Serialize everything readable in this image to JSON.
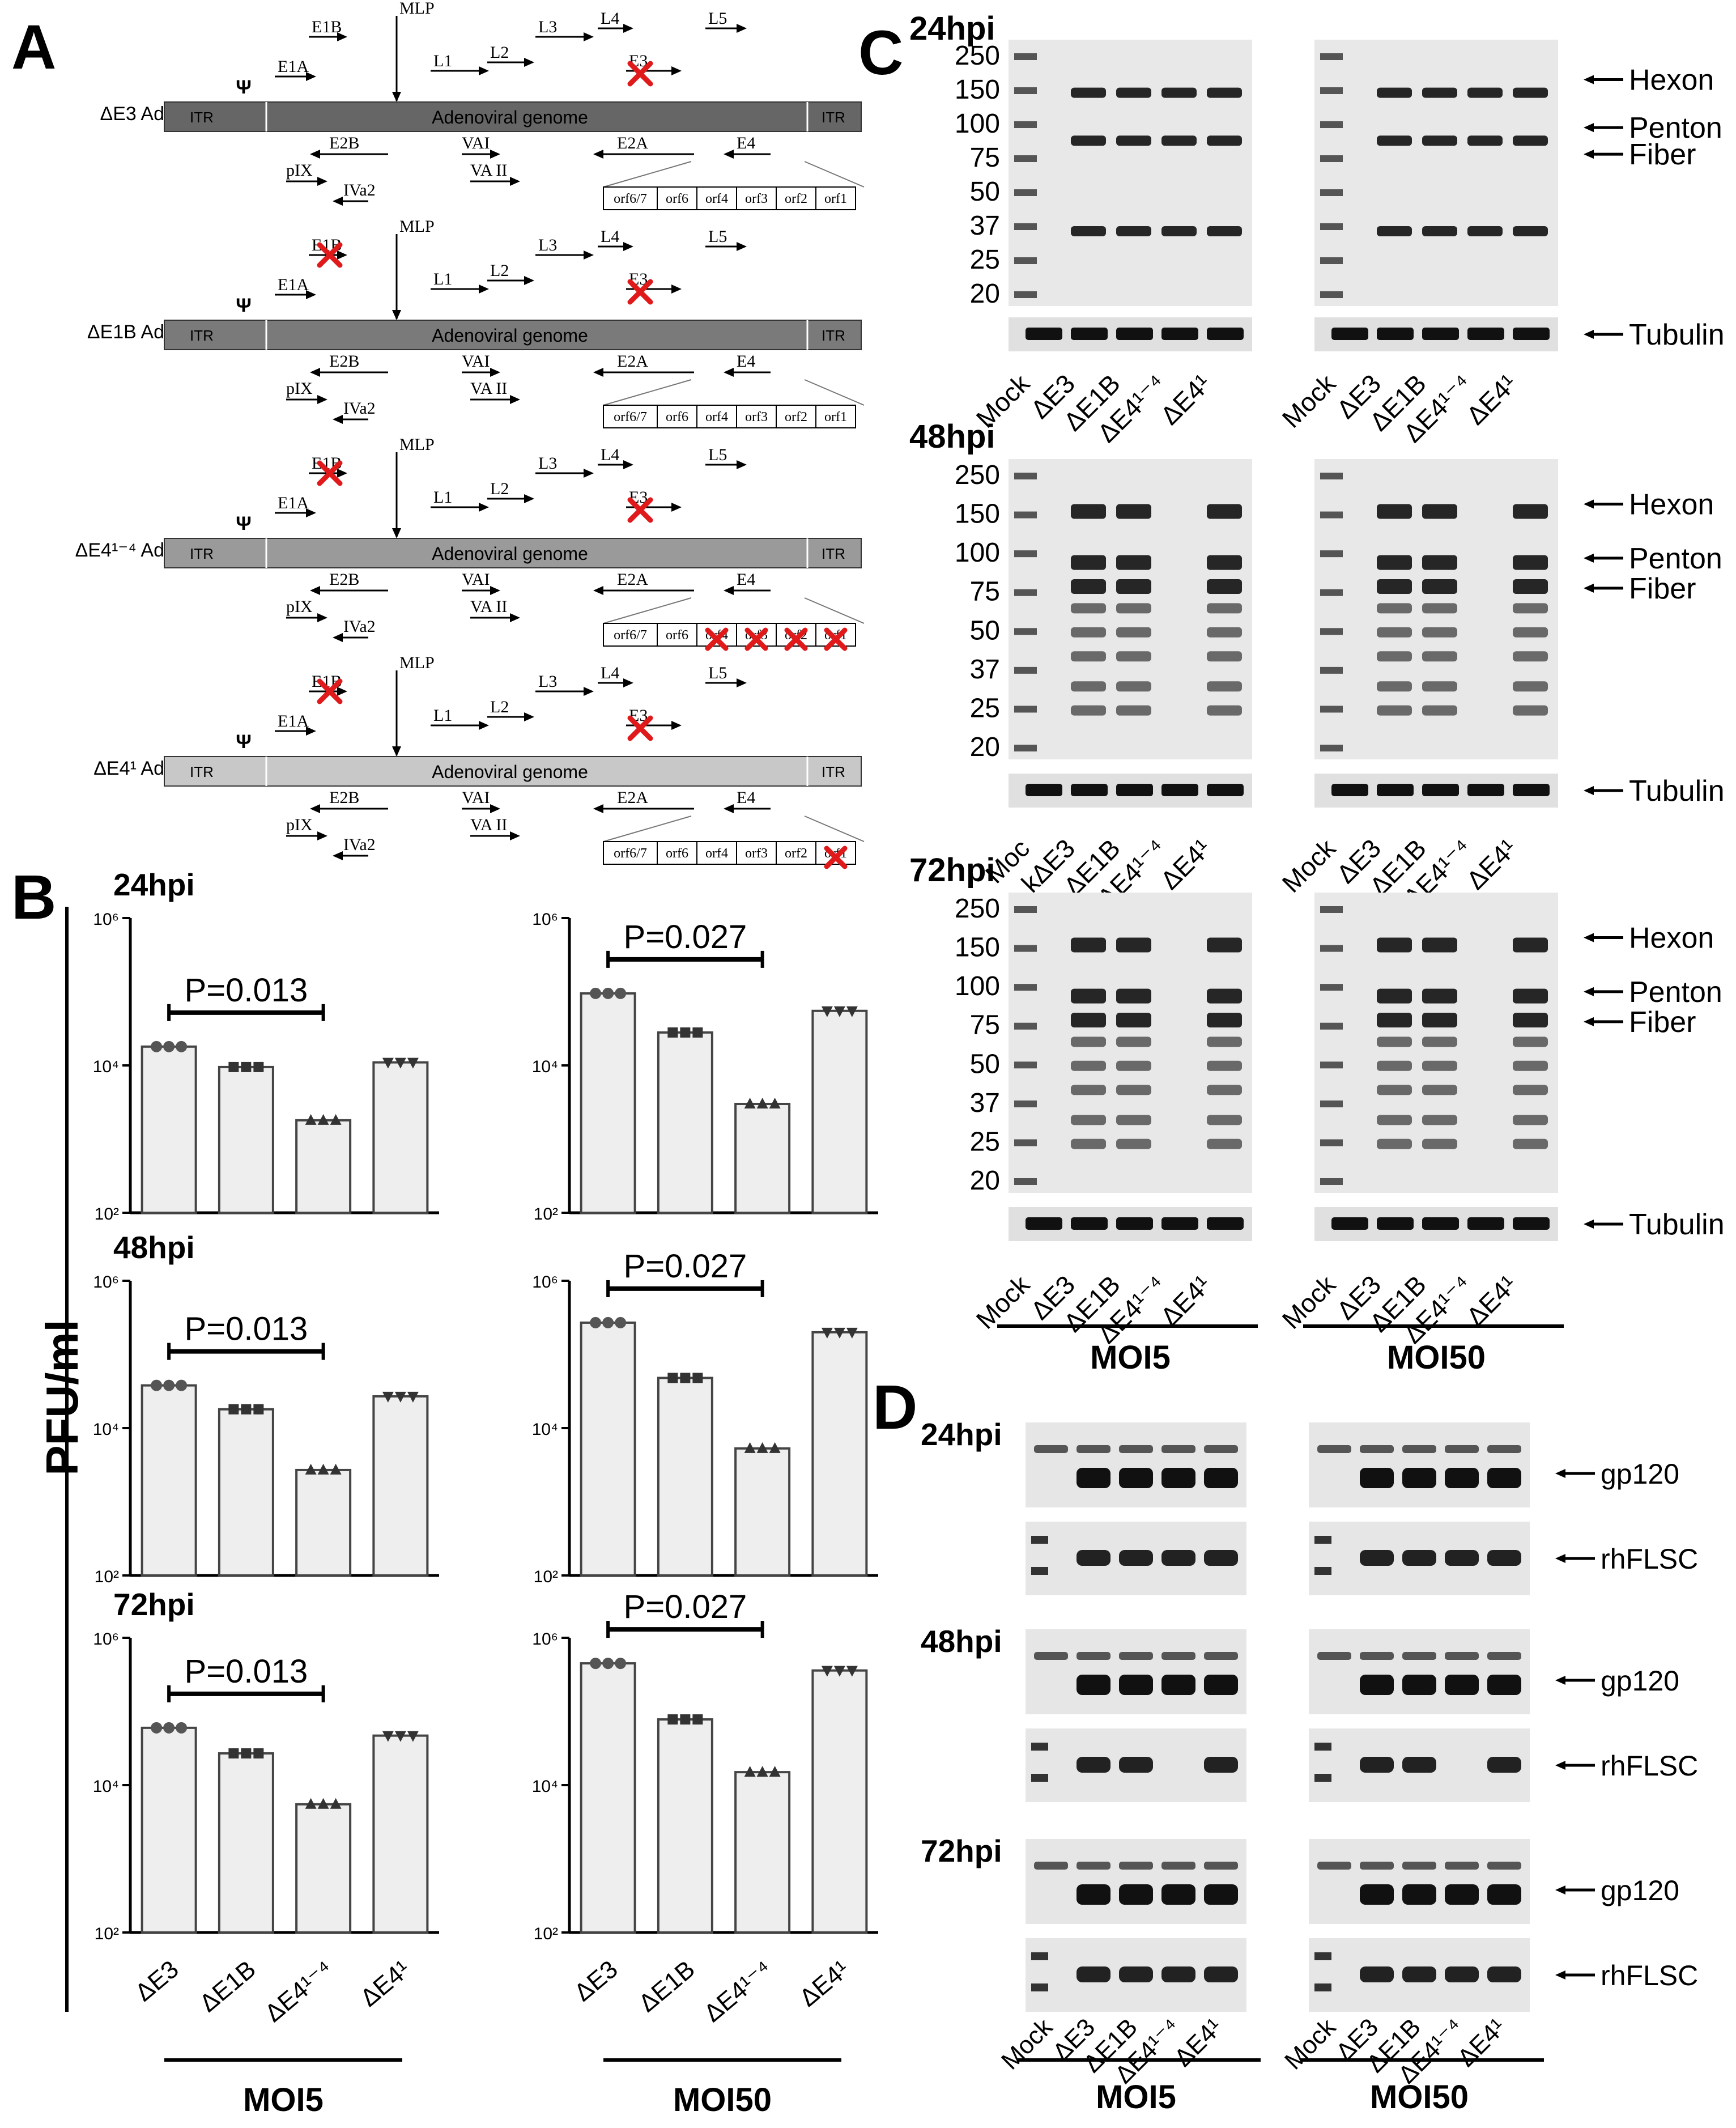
{
  "panelA": {
    "letter": "A",
    "constructs": [
      {
        "label": "ΔE3 Ad",
        "fill": "#666666",
        "x_e4": []
      },
      {
        "label": "ΔE1B Ad",
        "fill": "#7a7a7a",
        "x_e4": []
      },
      {
        "label": "ΔE4¹⁻⁴ Ad",
        "fill": "#9a9a9a",
        "x_e4": [
          "orf4",
          "orf3",
          "orf2",
          "orf1"
        ]
      },
      {
        "label": "ΔE4¹ Ad",
        "fill": "#c8c8c8",
        "x_e4": [
          "orf1"
        ]
      }
    ],
    "genome_label": "Adenoviral genome",
    "itr": "ITR",
    "psi": "Ψ",
    "top_genes": [
      "E1B",
      "MLP",
      "L3",
      "L4",
      "L5",
      "E1A",
      "L1",
      "L2",
      "E3"
    ],
    "bottom_genes": [
      "E2B",
      "VAI",
      "E2A",
      "E4",
      "pIX",
      "IVa2",
      "VA II"
    ],
    "orfs": [
      "orf6/7",
      "orf6",
      "orf4",
      "orf3",
      "orf2",
      "orf1"
    ],
    "accent": "#e0191b"
  },
  "panelB": {
    "letter": "B",
    "ylabel": "PFU/ml",
    "y_ticks": [
      "10⁶",
      "10⁴",
      "10²"
    ],
    "x_labels": [
      "ΔE3",
      "ΔE1B",
      "ΔE4¹⁻⁴",
      "ΔE4¹"
    ],
    "groups": [
      "MOI5",
      "MOI50"
    ]
  },
  "chart_data": [
    {
      "type": "bar",
      "title": "24hpi",
      "group": "MOI5",
      "categories": [
        "ΔE3",
        "ΔE1B",
        "ΔE4¹⁻⁴",
        "ΔE4¹"
      ],
      "values": [
        18000,
        9500,
        1800,
        11000
      ],
      "ylim": [
        100,
        1000000
      ],
      "yscale": "log",
      "annotation": "P=0.013"
    },
    {
      "type": "bar",
      "title": "24hpi",
      "group": "MOI50",
      "categories": [
        "ΔE3",
        "ΔE1B",
        "ΔE4¹⁻⁴",
        "ΔE4¹"
      ],
      "values": [
        95000,
        28000,
        3000,
        55000
      ],
      "ylim": [
        100,
        1000000
      ],
      "yscale": "log",
      "annotation": "P=0.027"
    },
    {
      "type": "bar",
      "title": "48hpi",
      "group": "MOI5",
      "categories": [
        "ΔE3",
        "ΔE1B",
        "ΔE4¹⁻⁴",
        "ΔE4¹"
      ],
      "values": [
        38000,
        18000,
        2700,
        27000
      ],
      "ylim": [
        100,
        1000000
      ],
      "yscale": "log",
      "annotation": "P=0.013"
    },
    {
      "type": "bar",
      "title": "48hpi",
      "group": "MOI50",
      "categories": [
        "ΔE3",
        "ΔE1B",
        "ΔE4¹⁻⁴",
        "ΔE4¹"
      ],
      "values": [
        270000,
        48000,
        5300,
        200000
      ],
      "ylim": [
        100,
        1000000
      ],
      "yscale": "log",
      "annotation": "P=0.027"
    },
    {
      "type": "bar",
      "title": "72hpi",
      "group": "MOI5",
      "categories": [
        "ΔE3",
        "ΔE1B",
        "ΔE4¹⁻⁴",
        "ΔE4¹"
      ],
      "values": [
        60000,
        27000,
        5500,
        47000
      ],
      "ylim": [
        100,
        1000000
      ],
      "yscale": "log",
      "annotation": "P=0.013"
    },
    {
      "type": "bar",
      "title": "72hpi",
      "group": "MOI50",
      "categories": [
        "ΔE3",
        "ΔE1B",
        "ΔE4¹⁻⁴",
        "ΔE4¹"
      ],
      "values": [
        450000,
        78000,
        15000,
        360000
      ],
      "ylim": [
        100,
        1000000
      ],
      "yscale": "log",
      "annotation": "P=0.027"
    }
  ],
  "panelC": {
    "letter": "C",
    "timepoints": [
      "24hpi",
      "48hpi",
      "72hpi"
    ],
    "mw_markers": [
      "250",
      "150",
      "100",
      "75",
      "50",
      "37",
      "25",
      "20"
    ],
    "band_labels": [
      "Hexon",
      "Penton",
      "Fiber"
    ],
    "loading": "Tubulin",
    "lanes": [
      "Mock",
      "ΔE3",
      "ΔE1B",
      "ΔE4¹⁻⁴",
      "ΔE4¹"
    ],
    "lanes_48_left": [
      "Moc",
      "kΔE3",
      "ΔE1B",
      "ΔE4¹⁻⁴",
      "ΔE4¹"
    ],
    "groups": [
      "MOI5",
      "MOI50"
    ]
  },
  "panelD": {
    "letter": "D",
    "timepoints": [
      "24hpi",
      "48hpi",
      "72hpi"
    ],
    "band_labels": [
      "gp120",
      "rhFLSC"
    ],
    "lanes": [
      "Mock",
      "ΔE3",
      "ΔE1B",
      "ΔE4¹⁻⁴",
      "ΔE4¹"
    ],
    "groups": [
      "MOI5",
      "MOI50"
    ]
  }
}
